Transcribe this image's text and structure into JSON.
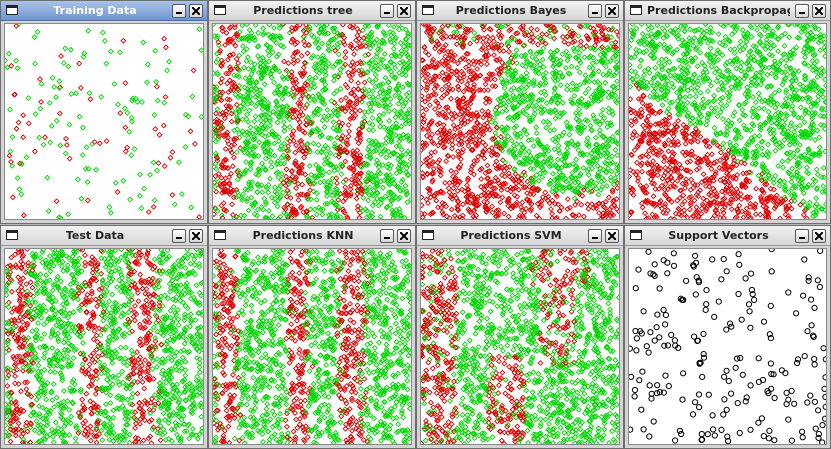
{
  "windows": [
    {
      "id": "training",
      "title": "Training Data",
      "active": true,
      "kind": "sparse",
      "seed": 11,
      "density": 0.1
    },
    {
      "id": "tree",
      "title": "Predictions tree",
      "active": false,
      "kind": "stripes",
      "seed": 22,
      "density": 1.0
    },
    {
      "id": "bayes",
      "title": "Predictions Bayes",
      "active": false,
      "kind": "circle",
      "seed": 33,
      "density": 1.0
    },
    {
      "id": "backprop",
      "title": "Predictions Backpropaga",
      "active": false,
      "kind": "diagonal",
      "seed": 44,
      "density": 1.0
    },
    {
      "id": "test",
      "title": "Test Data",
      "active": false,
      "kind": "stripes",
      "seed": 55,
      "density": 1.0
    },
    {
      "id": "knn",
      "title": "Predictions KNN",
      "active": false,
      "kind": "stripes",
      "seed": 66,
      "density": 1.0
    },
    {
      "id": "svm",
      "title": "Predictions SVM",
      "active": false,
      "kind": "stripes_soft",
      "seed": 77,
      "density": 1.0
    },
    {
      "id": "sv",
      "title": "Support Vectors",
      "active": false,
      "kind": "circles",
      "seed": 88,
      "density": 0.12
    }
  ],
  "colors": {
    "class_a": "#00d800",
    "class_b": "#e00000",
    "support_vector": "#000000"
  },
  "icons": {
    "system": "window-icon",
    "minimize": "minimize-icon",
    "close": "close-icon"
  }
}
